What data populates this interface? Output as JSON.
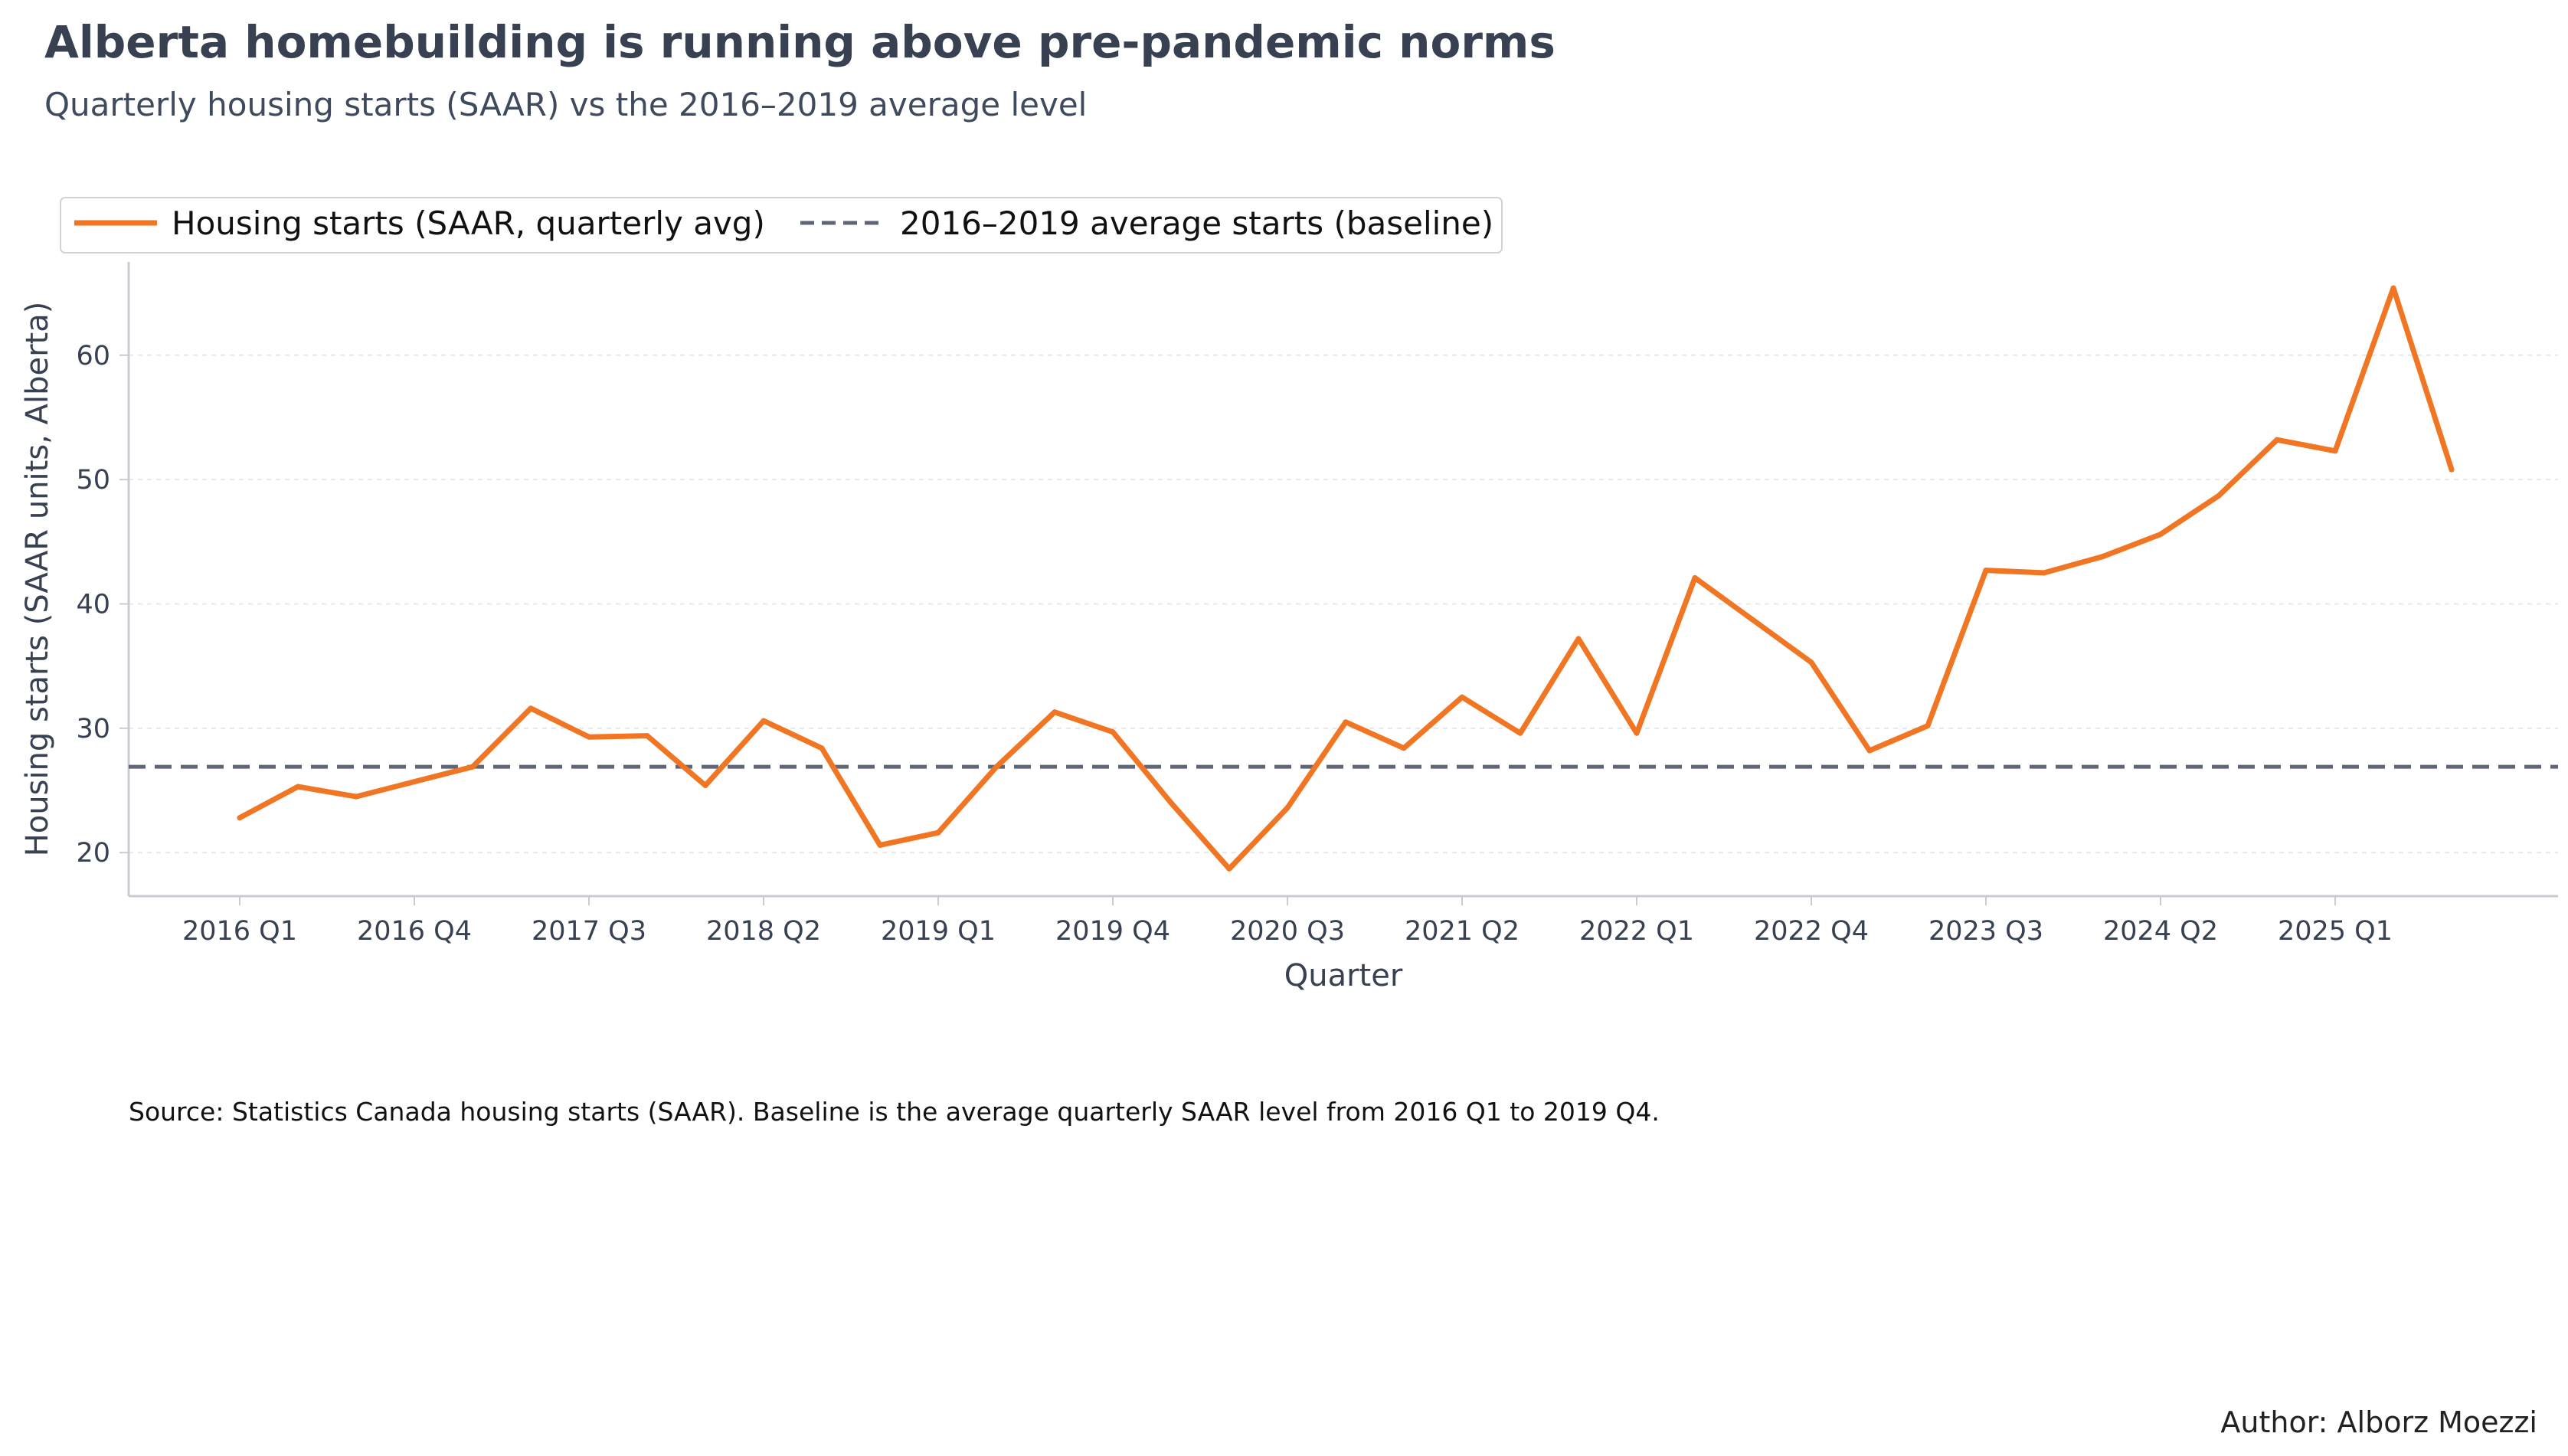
{
  "chart_data": {
    "type": "line",
    "title": "Alberta homebuilding is running above pre-pandemic norms",
    "subtitle": "Quarterly housing starts (SAAR) vs the 2016–2019 average level",
    "xlabel": "Quarter",
    "ylabel": "Housing starts (SAAR units, Alberta)",
    "categories": [
      "2016 Q1",
      "2016 Q2",
      "2016 Q3",
      "2016 Q4",
      "2017 Q1",
      "2017 Q2",
      "2017 Q3",
      "2017 Q4",
      "2018 Q1",
      "2018 Q2",
      "2018 Q3",
      "2018 Q4",
      "2019 Q1",
      "2019 Q2",
      "2019 Q3",
      "2019 Q4",
      "2020 Q1",
      "2020 Q2",
      "2020 Q3",
      "2020 Q4",
      "2021 Q1",
      "2021 Q2",
      "2021 Q3",
      "2021 Q4",
      "2022 Q1",
      "2022 Q2",
      "2022 Q3",
      "2022 Q4",
      "2023 Q1",
      "2023 Q2",
      "2023 Q3",
      "2023 Q4",
      "2024 Q1",
      "2024 Q2",
      "2024 Q3",
      "2024 Q4",
      "2025 Q1",
      "2025 Q2",
      "2025 Q3"
    ],
    "x_tick_labels": [
      "2016 Q1",
      "2016 Q4",
      "2017 Q3",
      "2018 Q2",
      "2019 Q1",
      "2019 Q4",
      "2020 Q3",
      "2021 Q2",
      "2022 Q1",
      "2022 Q4",
      "2023 Q3",
      "2024 Q2",
      "2025 Q1"
    ],
    "series": [
      {
        "name": "Housing starts (SAAR, quarterly avg)",
        "color": "#f07623",
        "values": [
          22.8,
          25.3,
          24.5,
          25.7,
          26.9,
          31.6,
          29.3,
          29.4,
          25.4,
          30.6,
          28.4,
          20.6,
          21.6,
          26.9,
          31.3,
          29.7,
          24.0,
          18.7,
          23.6,
          30.5,
          28.4,
          32.5,
          29.6,
          37.2,
          29.6,
          42.1,
          38.7,
          35.3,
          28.2,
          30.2,
          42.7,
          42.5,
          43.8,
          45.6,
          48.7,
          53.2,
          52.3,
          65.4,
          50.8
        ]
      }
    ],
    "baseline": {
      "name": "2016–2019 average starts (baseline)",
      "value": 26.9,
      "color": "#5e6678",
      "style": "dashed"
    },
    "ylim": [
      16.5,
      67.5
    ],
    "y_ticks": [
      20,
      30,
      40,
      50,
      60
    ],
    "grid": "horizontal",
    "legend": "top-left",
    "source": "Source: Statistics Canada housing starts (SAAR). Baseline is the average quarterly SAAR level from 2016 Q1 to 2019 Q4.",
    "author": "Author: Alborz Moezzi"
  }
}
